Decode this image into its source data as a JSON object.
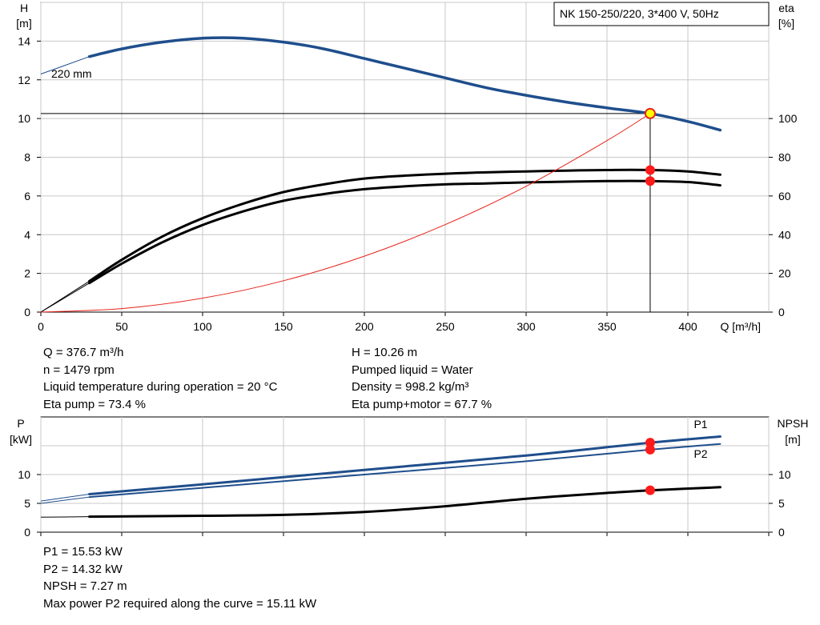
{
  "chart_data": [
    {
      "type": "line",
      "title": "NK 150-250/220, 3*400 V, 50Hz",
      "xlabel": "Q [m³/h]",
      "ylabel": "H\n[m]",
      "y2label": "eta\n[%]",
      "xlim": [
        0,
        450
      ],
      "ylim": [
        0,
        16
      ],
      "y2lim": [
        0,
        100
      ],
      "x_ticks": [
        0,
        50,
        100,
        150,
        200,
        250,
        300,
        350,
        400
      ],
      "y_ticks": [
        0,
        2,
        4,
        6,
        8,
        10,
        12,
        14
      ],
      "y2_ticks": [
        0,
        20,
        40,
        60,
        80,
        100
      ],
      "grid": true,
      "curve_label": "220 mm",
      "operating_point": {
        "x": 376.7,
        "y": 10.26
      },
      "series": [
        {
          "key": "head",
          "color": "#1f4e8c",
          "values": [
            [
              0,
              12.3
            ],
            [
              30,
              13.2
            ],
            [
              50,
              13.6
            ],
            [
              75,
              13.95
            ],
            [
              100,
              14.15
            ],
            [
              125,
              14.15
            ],
            [
              150,
              13.95
            ],
            [
              175,
              13.6
            ],
            [
              200,
              13.1
            ],
            [
              225,
              12.6
            ],
            [
              250,
              12.1
            ],
            [
              275,
              11.6
            ],
            [
              300,
              11.2
            ],
            [
              325,
              10.85
            ],
            [
              350,
              10.55
            ],
            [
              376.7,
              10.26
            ],
            [
              400,
              9.85
            ],
            [
              420,
              9.4
            ]
          ]
        },
        {
          "key": "eta_pump",
          "color": "#000000",
          "values": [
            [
              0,
              0
            ],
            [
              30,
              1.6
            ],
            [
              50,
              2.7
            ],
            [
              75,
              3.9
            ],
            [
              100,
              4.85
            ],
            [
              125,
              5.6
            ],
            [
              150,
              6.2
            ],
            [
              175,
              6.6
            ],
            [
              200,
              6.9
            ],
            [
              225,
              7.05
            ],
            [
              250,
              7.15
            ],
            [
              275,
              7.22
            ],
            [
              300,
              7.27
            ],
            [
              325,
              7.31
            ],
            [
              350,
              7.34
            ],
            [
              376.7,
              7.34
            ],
            [
              400,
              7.27
            ],
            [
              420,
              7.1
            ]
          ]
        },
        {
          "key": "eta_total",
          "color": "#000000",
          "values": [
            [
              0,
              0
            ],
            [
              30,
              1.5
            ],
            [
              50,
              2.5
            ],
            [
              75,
              3.6
            ],
            [
              100,
              4.5
            ],
            [
              125,
              5.2
            ],
            [
              150,
              5.75
            ],
            [
              175,
              6.1
            ],
            [
              200,
              6.35
            ],
            [
              225,
              6.5
            ],
            [
              250,
              6.6
            ],
            [
              275,
              6.65
            ],
            [
              300,
              6.7
            ],
            [
              325,
              6.74
            ],
            [
              350,
              6.77
            ],
            [
              376.7,
              6.77
            ],
            [
              400,
              6.72
            ],
            [
              420,
              6.55
            ]
          ]
        },
        {
          "key": "system",
          "color": "#e8231b",
          "values": [
            [
              0,
              0
            ],
            [
              50,
              0.18
            ],
            [
              100,
              0.72
            ],
            [
              150,
              1.62
            ],
            [
              200,
              2.89
            ],
            [
              250,
              4.52
            ],
            [
              300,
              6.5
            ],
            [
              350,
              8.86
            ],
            [
              376.7,
              10.26
            ]
          ]
        }
      ],
      "markers": [
        [
          376.7,
          7.34
        ],
        [
          376.7,
          6.77
        ],
        [
          376.7,
          10.26
        ]
      ]
    },
    {
      "type": "line",
      "ylabel": "P\n[kW]",
      "y2label": "NPSH\n[m]",
      "xlim": [
        0,
        450
      ],
      "ylim": [
        0,
        20
      ],
      "y_ticks": [
        0,
        5,
        10
      ],
      "y2_ticks": [
        0,
        5,
        10
      ],
      "grid": true,
      "series": [
        {
          "name": "P1",
          "color": "#1f4e8c",
          "values": [
            [
              0,
              5.4
            ],
            [
              30,
              6.6
            ],
            [
              100,
              8.3
            ],
            [
              200,
              10.8
            ],
            [
              300,
              13.3
            ],
            [
              376.7,
              15.53
            ],
            [
              420,
              16.6
            ]
          ]
        },
        {
          "name": "P2",
          "color": "#1f4e8c",
          "values": [
            [
              0,
              5.0
            ],
            [
              30,
              6.1
            ],
            [
              100,
              7.7
            ],
            [
              200,
              10.0
            ],
            [
              300,
              12.3
            ],
            [
              376.7,
              14.32
            ],
            [
              420,
              15.3
            ]
          ]
        },
        {
          "key": "npsh",
          "color": "#000000",
          "values": [
            [
              0,
              2.6
            ],
            [
              30,
              2.7
            ],
            [
              100,
              2.85
            ],
            [
              150,
              3.0
            ],
            [
              200,
              3.5
            ],
            [
              250,
              4.5
            ],
            [
              300,
              5.8
            ],
            [
              350,
              6.8
            ],
            [
              376.7,
              7.27
            ],
            [
              420,
              7.8
            ]
          ]
        }
      ],
      "markers": [
        [
          376.7,
          15.53
        ],
        [
          376.7,
          14.32
        ],
        [
          376.7,
          7.27
        ]
      ]
    }
  ],
  "info_top_left": [
    "Q = 376.7 m³/h",
    "n = 1479 rpm",
    "Liquid temperature during operation = 20 °C",
    "Eta pump = 73.4 %"
  ],
  "info_top_right": [
    "H = 10.26 m",
    "Pumped liquid = Water",
    "Density = 998.2 kg/m³",
    "Eta pump+motor = 67.7 %"
  ],
  "info_bottom": [
    "P1 = 15.53 kW",
    "P2 = 14.32 kW",
    "NPSH = 7.27 m",
    "Max power P2 required along the curve = 15.11 kW"
  ]
}
